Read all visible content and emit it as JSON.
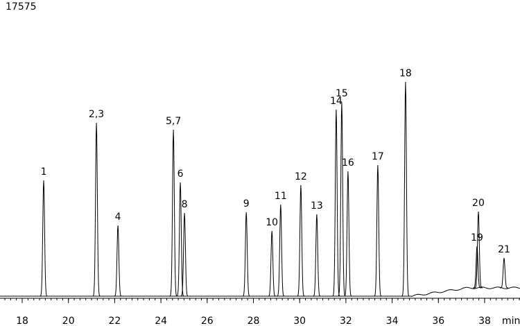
{
  "chart_data": {
    "type": "chromatogram",
    "title": "17575",
    "x_label": "min",
    "labels": [
      "1",
      "2,3",
      "4",
      "5,7",
      "6",
      "8",
      "9",
      "10",
      "11",
      "12",
      "13",
      "14",
      "15",
      "16",
      "17",
      "18",
      "19",
      "20",
      "21"
    ],
    "x": [
      18.93,
      21.21,
      22.14,
      24.54,
      24.84,
      25.02,
      27.69,
      28.8,
      29.18,
      30.05,
      30.74,
      31.58,
      31.82,
      32.09,
      33.38,
      34.58,
      37.67,
      37.73,
      38.84
    ],
    "values": [
      167,
      250,
      102,
      240,
      164,
      120,
      121,
      94,
      132,
      160,
      118,
      269,
      280,
      180,
      189,
      309,
      72,
      122,
      55
    ],
    "color": "#000000",
    "xlim": [
      17.04,
      39.53
    ],
    "xticks": [
      18,
      20,
      22,
      24,
      26,
      28,
      30,
      32,
      34,
      36,
      38
    ],
    "ylim": [
      0,
      330
    ]
  }
}
